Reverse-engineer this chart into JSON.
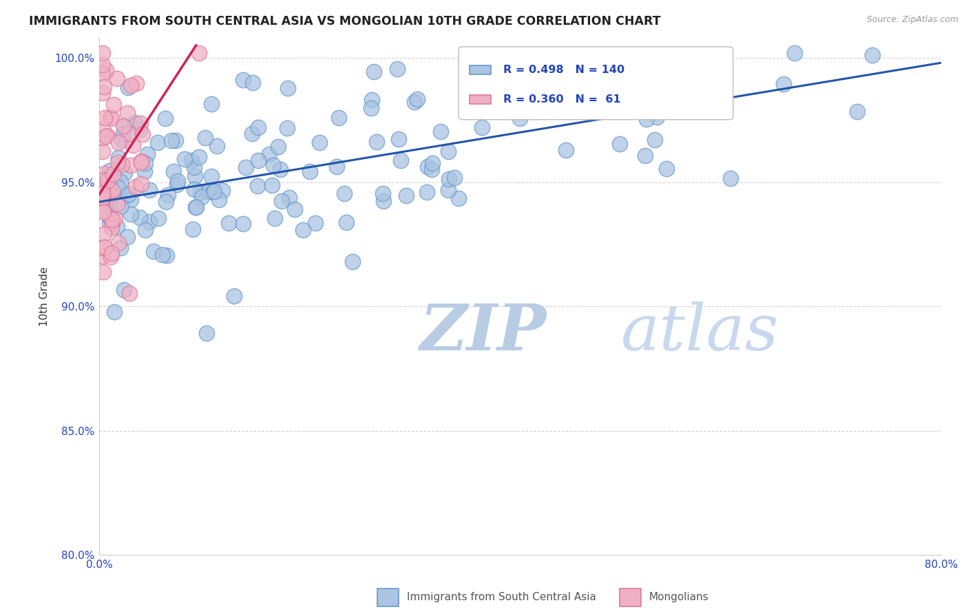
{
  "title": "IMMIGRANTS FROM SOUTH CENTRAL ASIA VS MONGOLIAN 10TH GRADE CORRELATION CHART",
  "source_text": "Source: ZipAtlas.com",
  "xlabel_blue": "Immigrants from South Central Asia",
  "xlabel_pink": "Mongolians",
  "ylabel": "10th Grade",
  "watermark_zip": "ZIP",
  "watermark_atlas": "atlas",
  "blue_R": 0.498,
  "blue_N": 140,
  "pink_R": 0.36,
  "pink_N": 61,
  "xmin": 0.0,
  "xmax": 0.8,
  "ymin": 0.8,
  "ymax": 1.008,
  "yticks": [
    0.8,
    0.85,
    0.9,
    0.95,
    1.0
  ],
  "ytick_labels": [
    "80.0%",
    "85.0%",
    "90.0%",
    "95.0%",
    "100.0%"
  ],
  "xticks": [
    0.0,
    0.1,
    0.2,
    0.3,
    0.4,
    0.5,
    0.6,
    0.7,
    0.8
  ],
  "xtick_labels": [
    "0.0%",
    "",
    "",
    "",
    "",
    "",
    "",
    "",
    "80.0%"
  ],
  "blue_color": "#aac4e2",
  "blue_edge": "#6699cc",
  "pink_color": "#f0b0c4",
  "pink_edge": "#dd7799",
  "blue_line_color": "#2255aa",
  "pink_line_color": "#cc2255",
  "grid_color": "#cccccc",
  "title_color": "#222222",
  "axis_label_color": "#333333",
  "legend_text_color": "#2244bb",
  "watermark_color_zip": "#b8cce4",
  "watermark_color_atlas": "#c8d8ee",
  "background_color": "#ffffff",
  "blue_trendline_x": [
    0.0,
    0.8
  ],
  "blue_trendline_y": [
    0.942,
    0.998
  ],
  "pink_trendline_x": [
    0.0,
    0.092
  ],
  "pink_trendline_y": [
    0.945,
    1.005
  ]
}
